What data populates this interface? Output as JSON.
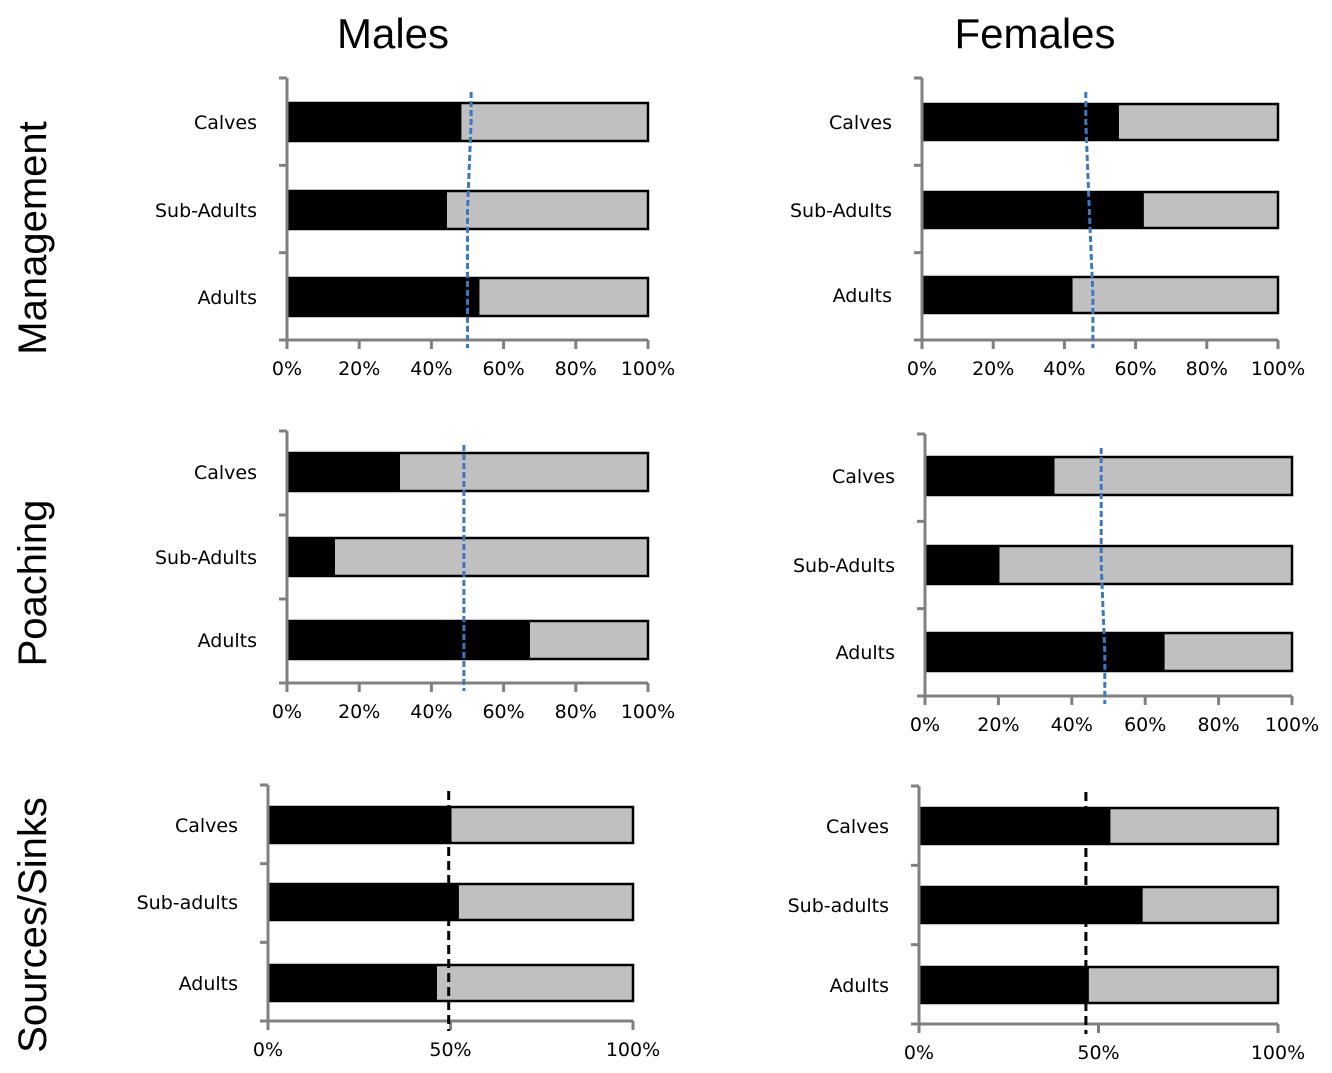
{
  "column_titles": [
    "Males",
    "Females"
  ],
  "row_titles": [
    "Management",
    "Poaching",
    "Sources/Sinks"
  ],
  "colors": {
    "series_1": "#000000",
    "series_2": "#c0c0c0",
    "reference_blue": "#3a78c3",
    "reference_black": "#000000",
    "axis": "#808080"
  },
  "chart_data": [
    {
      "type": "bar",
      "orientation": "horizontal",
      "stacked": true,
      "percent": true,
      "column": "Males",
      "row": "Management",
      "categories": [
        "Calves",
        "Sub-Adults",
        "Adults"
      ],
      "series": [
        {
          "values": [
            48,
            44,
            53
          ]
        },
        {
          "values": [
            52,
            56,
            47
          ]
        }
      ],
      "reference_line": {
        "style": "dashed",
        "color": "blue",
        "values": [
          51,
          50,
          50
        ]
      },
      "xlim": [
        0,
        100
      ],
      "xticks": [
        "0%",
        "20%",
        "40%",
        "60%",
        "80%",
        "100%"
      ]
    },
    {
      "type": "bar",
      "orientation": "horizontal",
      "stacked": true,
      "percent": true,
      "column": "Females",
      "row": "Management",
      "categories": [
        "Calves",
        "Sub-Adults",
        "Adults"
      ],
      "series": [
        {
          "values": [
            55,
            62,
            42
          ]
        },
        {
          "values": [
            45,
            38,
            58
          ]
        }
      ],
      "reference_line": {
        "style": "dashed",
        "color": "blue",
        "values": [
          46,
          47,
          48
        ]
      },
      "xlim": [
        0,
        100
      ],
      "xticks": [
        "0%",
        "20%",
        "40%",
        "60%",
        "80%",
        "100%"
      ]
    },
    {
      "type": "bar",
      "orientation": "horizontal",
      "stacked": true,
      "percent": true,
      "column": "Males",
      "row": "Poaching",
      "categories": [
        "Calves",
        "Sub-Adults",
        "Adults"
      ],
      "series": [
        {
          "values": [
            31,
            13,
            67
          ]
        },
        {
          "values": [
            69,
            87,
            33
          ]
        }
      ],
      "reference_line": {
        "style": "dashed",
        "color": "blue",
        "values": [
          49,
          49,
          49
        ]
      },
      "xlim": [
        0,
        100
      ],
      "xticks": [
        "0%",
        "20%",
        "40%",
        "60%",
        "80%",
        "100%"
      ]
    },
    {
      "type": "bar",
      "orientation": "horizontal",
      "stacked": true,
      "percent": true,
      "column": "Females",
      "row": "Poaching",
      "categories": [
        "Calves",
        "Sub-Adults",
        "Adults"
      ],
      "series": [
        {
          "values": [
            35,
            20,
            65
          ]
        },
        {
          "values": [
            65,
            80,
            35
          ]
        }
      ],
      "reference_line": {
        "style": "dashed",
        "color": "blue",
        "values": [
          48,
          48,
          49
        ]
      },
      "xlim": [
        0,
        100
      ],
      "xticks": [
        "0%",
        "20%",
        "40%",
        "60%",
        "80%",
        "100%"
      ]
    },
    {
      "type": "bar",
      "orientation": "horizontal",
      "stacked": true,
      "percent": true,
      "column": "Males",
      "row": "Sources/Sinks",
      "categories": [
        "Calves",
        "Sub-adults",
        "Adults"
      ],
      "series": [
        {
          "values": [
            50,
            52,
            46
          ]
        },
        {
          "values": [
            50,
            48,
            54
          ]
        }
      ],
      "reference_line": {
        "style": "dashed",
        "color": "black",
        "values": [
          49.5,
          49.5,
          49.5
        ]
      },
      "xlim": [
        0,
        100
      ],
      "xticks": [
        "0%",
        "50%",
        "100%"
      ]
    },
    {
      "type": "bar",
      "orientation": "horizontal",
      "stacked": true,
      "percent": true,
      "column": "Females",
      "row": "Sources/Sinks",
      "categories": [
        "Calves",
        "Sub-adults",
        "Adults"
      ],
      "series": [
        {
          "values": [
            53,
            62,
            47
          ]
        },
        {
          "values": [
            47,
            38,
            53
          ]
        }
      ],
      "reference_line": {
        "style": "dashed",
        "color": "black",
        "values": [
          46.5,
          46.5,
          46.5
        ]
      },
      "xlim": [
        0,
        100
      ],
      "xticks": [
        "0%",
        "50%",
        "100%"
      ]
    }
  ]
}
